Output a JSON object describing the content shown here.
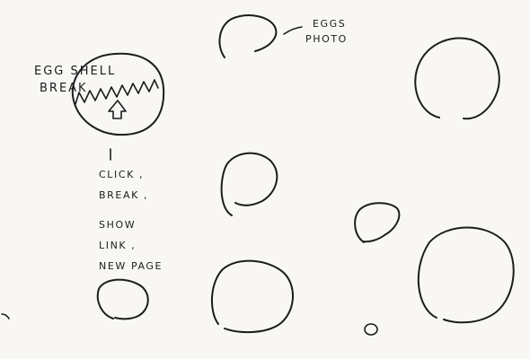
{
  "egg_label": [
    "EGG SHELL",
    "BREAK"
  ],
  "photo_label": [
    "EGGS",
    "PHOTO"
  ],
  "steps": [
    "CLICK ,",
    "BREAK ,",
    "SHOW",
    "LINK ,",
    "NEW PAGE"
  ],
  "ink_color": "#1c1c1e",
  "paper_color": "#f8f7f4"
}
